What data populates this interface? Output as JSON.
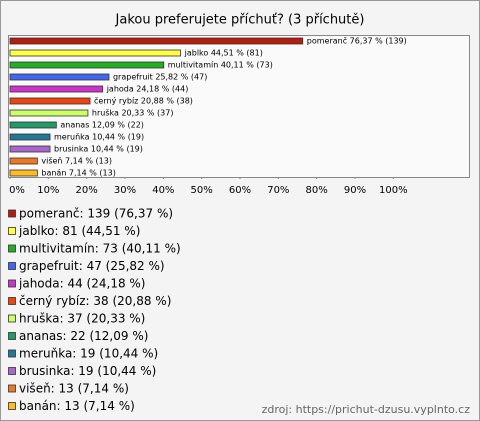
{
  "chart_data": {
    "type": "bar",
    "orientation": "horizontal",
    "title": "Jakou preferujete příchuť? (3 příchutě)",
    "categories": [
      "pomeranč",
      "jablko",
      "multivitamín",
      "grapefruit",
      "jahoda",
      "černý rybíz",
      "hruška",
      "ananas",
      "meruňka",
      "brusinka",
      "višeň",
      "banán"
    ],
    "values": [
      76.37,
      44.51,
      40.11,
      25.82,
      24.18,
      20.88,
      20.33,
      12.09,
      10.44,
      10.44,
      7.14,
      7.14
    ],
    "value_labels": [
      "pomeranč 76,37 % (139)",
      "jablko 44,51 % (81)",
      "multivitamín 40,11 % (73)",
      "grapefruit 25,82 % (47)",
      "jahoda 24,18 % (44)",
      "černý rybíz 20,88 % (38)",
      "hruška 20,33 % (37)",
      "ananas 12,09 % (22)",
      "meruňka 10,44 % (19)",
      "brusinka 10,44 % (19)",
      "višeň 7,14 % (13)",
      "banán 7,14 % (13)"
    ],
    "colors": [
      "#b81c10",
      "#ffff44",
      "#22b022",
      "#4466ee",
      "#cc33cc",
      "#ee4411",
      "#ccff66",
      "#229966",
      "#227799",
      "#aa66cc",
      "#ee7722",
      "#ffbb22"
    ],
    "legend": [
      "pomeranč: 139 (76,37 %)",
      "jablko: 81 (44,51 %)",
      "multivitamín: 73 (40,11 %)",
      "grapefruit: 47 (25,82 %)",
      "jahoda: 44 (24,18 %)",
      "černý rybíz: 38 (20,88 %)",
      "hruška: 37 (20,33 %)",
      "ananas: 22 (12,09 %)",
      "meruňka: 19 (10,44 %)",
      "brusinka: 19 (10,44 %)",
      "višeň: 13 (7,14 %)",
      "banán: 13 (7,14 %)"
    ],
    "xlim": [
      0,
      120
    ],
    "xticks": [
      {
        "value": 0,
        "label": "0%"
      },
      {
        "value": 10,
        "label": "10%"
      },
      {
        "value": 20,
        "label": "20%"
      },
      {
        "value": 30,
        "label": "30%"
      },
      {
        "value": 40,
        "label": "40%"
      },
      {
        "value": 50,
        "label": "50%"
      },
      {
        "value": 60,
        "label": "60%"
      },
      {
        "value": 70,
        "label": "70%"
      },
      {
        "value": 80,
        "label": "80%"
      },
      {
        "value": 90,
        "label": "90%"
      },
      {
        "value": 100,
        "label": "100%"
      }
    ],
    "source": "zdroj: https://prichut-dzusu.vyplnto.cz"
  }
}
